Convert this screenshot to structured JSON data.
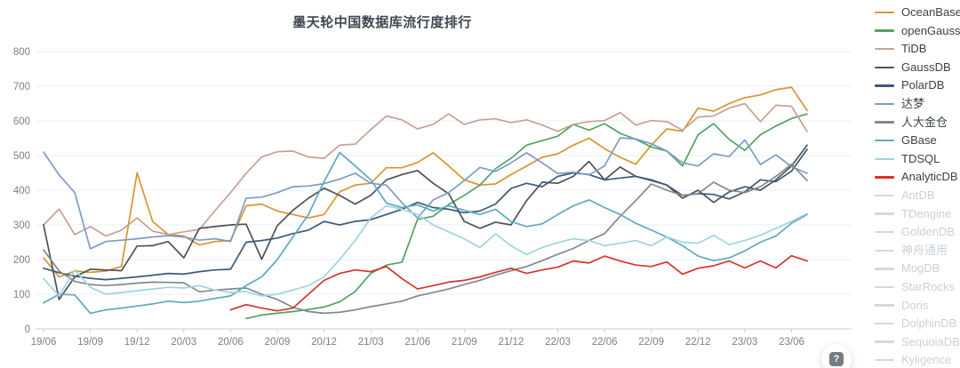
{
  "title": "墨天轮中国数据库流行度排行",
  "help_button": {
    "icon": "question-mark-icon",
    "label": "?"
  },
  "colors": {
    "background": "#ffffff",
    "grid": "#E9EFF6",
    "axis": "#C8CDD2",
    "tick_text": "#7A8186",
    "title_text": "#40474E",
    "legend_text": "#3A4145",
    "legend_inactive": "#CBD1D6",
    "legend_inactive_swatch": "#D4D9DD"
  },
  "chart_data": {
    "type": "line",
    "title": "墨天轮中国数据库流行度排行",
    "xlabel": "",
    "ylabel": "",
    "ylim": [
      0,
      800
    ],
    "y_ticks": [
      0,
      100,
      200,
      300,
      400,
      500,
      600,
      700,
      800
    ],
    "grid": "horizontal",
    "legend_position": "right",
    "x": [
      "19/06",
      "19/07",
      "19/08",
      "19/09",
      "19/10",
      "19/11",
      "19/12",
      "20/01",
      "20/02",
      "20/03",
      "20/04",
      "20/05",
      "20/06",
      "20/07",
      "20/08",
      "20/09",
      "20/10",
      "20/11",
      "20/12",
      "21/01",
      "21/02",
      "21/03",
      "21/04",
      "21/05",
      "21/06",
      "21/07",
      "21/08",
      "21/09",
      "21/10",
      "21/11",
      "21/12",
      "22/01",
      "22/02",
      "22/03",
      "22/04",
      "22/05",
      "22/06",
      "22/07",
      "22/08",
      "22/09",
      "22/10",
      "22/11",
      "22/12",
      "23/01",
      "23/02",
      "23/03",
      "23/04",
      "23/05",
      "23/06",
      "23/07"
    ],
    "x_tick_labels": [
      "19/06",
      "19/09",
      "19/12",
      "20/03",
      "20/06",
      "20/09",
      "20/12",
      "21/03",
      "21/06",
      "21/09",
      "21/12",
      "22/03",
      "22/06",
      "22/09",
      "22/12",
      "23/03",
      "23/06"
    ],
    "series": [
      {
        "name": "OceanBase",
        "color": "#D9952E",
        "values": [
          205,
          150,
          167,
          163,
          167,
          180,
          450,
          310,
          272,
          268,
          242,
          252,
          255,
          355,
          360,
          340,
          330,
          320,
          330,
          395,
          415,
          420,
          465,
          465,
          480,
          508,
          470,
          430,
          415,
          418,
          445,
          470,
          495,
          505,
          530,
          550,
          520,
          495,
          475,
          530,
          577,
          570,
          637,
          628,
          650,
          667,
          675,
          690,
          697,
          630
        ]
      },
      {
        "name": "openGauss",
        "color": "#55A164",
        "values": [
          null,
          null,
          null,
          null,
          null,
          null,
          null,
          null,
          null,
          null,
          null,
          null,
          null,
          30,
          40,
          45,
          50,
          56,
          63,
          78,
          108,
          160,
          184,
          192,
          316,
          325,
          359,
          385,
          415,
          462,
          492,
          530,
          543,
          556,
          590,
          573,
          592,
          564,
          547,
          525,
          513,
          470,
          560,
          592,
          547,
          515,
          560,
          585,
          607,
          620
        ]
      },
      {
        "name": "TiDB",
        "color": "#C9A094",
        "values": [
          300,
          346,
          272,
          295,
          268,
          285,
          320,
          282,
          272,
          280,
          287,
          341,
          393,
          449,
          496,
          511,
          513,
          496,
          492,
          530,
          533,
          575,
          614,
          603,
          577,
          590,
          620,
          590,
          603,
          606,
          595,
          603,
          588,
          570,
          590,
          598,
          601,
          624,
          588,
          601,
          598,
          573,
          611,
          614,
          637,
          650,
          598,
          645,
          642,
          569
        ]
      },
      {
        "name": "GaussDB",
        "color": "#4E5357",
        "values": [
          300,
          85,
          150,
          172,
          170,
          168,
          239,
          240,
          252,
          205,
          290,
          295,
          300,
          302,
          201,
          298,
          342,
          377,
          406,
          385,
          360,
          385,
          430,
          445,
          457,
          420,
          390,
          310,
          290,
          308,
          300,
          370,
          423,
          420,
          440,
          483,
          430,
          467,
          440,
          430,
          415,
          377,
          400,
          365,
          395,
          410,
          400,
          430,
          470,
          530
        ]
      },
      {
        "name": "PolarDB",
        "color": "#3D5977",
        "values": [
          175,
          162,
          152,
          146,
          142,
          146,
          150,
          155,
          160,
          158,
          165,
          170,
          172,
          250,
          255,
          262,
          275,
          285,
          310,
          300,
          310,
          315,
          330,
          345,
          365,
          350,
          345,
          335,
          340,
          360,
          405,
          420,
          410,
          440,
          450,
          445,
          430,
          435,
          440,
          428,
          415,
          385,
          390,
          388,
          375,
          395,
          430,
          425,
          455,
          518
        ]
      },
      {
        "name": "达梦",
        "color": "#7D9BC8",
        "values": [
          510,
          444,
          393,
          231,
          252,
          256,
          260,
          265,
          269,
          265,
          256,
          260,
          252,
          377,
          380,
          393,
          410,
          412,
          419,
          432,
          449,
          420,
          415,
          364,
          320,
          372,
          393,
          428,
          466,
          454,
          479,
          508,
          479,
          448,
          452,
          444,
          470,
          551,
          548,
          534,
          513,
          479,
          470,
          505,
          497,
          545,
          474,
          502,
          468,
          449
        ]
      },
      {
        "name": "人大金仓",
        "color": "#82888D",
        "values": [
          228,
          167,
          137,
          128,
          125,
          128,
          132,
          135,
          134,
          133,
          107,
          112,
          115,
          118,
          100,
          85,
          62,
          50,
          45,
          48,
          55,
          64,
          72,
          80,
          95,
          105,
          115,
          128,
          140,
          155,
          168,
          180,
          197,
          215,
          232,
          255,
          275,
          325,
          370,
          418,
          400,
          385,
          390,
          423,
          400,
          393,
          410,
          440,
          475,
          428
        ]
      },
      {
        "name": "GBase",
        "color": "#5FA9C0",
        "values": [
          75,
          100,
          98,
          45,
          55,
          60,
          66,
          72,
          80,
          76,
          80,
          88,
          95,
          125,
          150,
          200,
          265,
          330,
          425,
          509,
          470,
          430,
          363,
          350,
          358,
          340,
          355,
          342,
          330,
          345,
          310,
          295,
          303,
          330,
          355,
          372,
          350,
          330,
          305,
          285,
          265,
          240,
          210,
          197,
          205,
          225,
          250,
          268,
          305,
          330
        ]
      },
      {
        "name": "TDSQL",
        "color": "#9FD4DE",
        "values": [
          145,
          95,
          170,
          120,
          100,
          105,
          110,
          115,
          120,
          118,
          125,
          112,
          105,
          108,
          95,
          100,
          112,
          125,
          150,
          200,
          255,
          320,
          355,
          345,
          330,
          300,
          280,
          260,
          235,
          274,
          240,
          214,
          235,
          249,
          260,
          255,
          240,
          247,
          255,
          240,
          265,
          250,
          247,
          270,
          243,
          255,
          270,
          290,
          310,
          333
        ]
      },
      {
        "name": "AnalyticDB",
        "color": "#D6332C",
        "values": [
          null,
          null,
          null,
          null,
          null,
          null,
          null,
          null,
          null,
          null,
          null,
          null,
          55,
          70,
          60,
          52,
          60,
          100,
          140,
          160,
          170,
          165,
          180,
          145,
          115,
          125,
          135,
          140,
          150,
          163,
          175,
          160,
          170,
          178,
          196,
          190,
          210,
          196,
          184,
          180,
          193,
          158,
          175,
          182,
          196,
          176,
          196,
          176,
          211,
          196
        ]
      }
    ],
    "inactive_series": [
      "AntDB",
      "TDengine",
      "GoldenDB",
      "神舟通用",
      "MogDB",
      "StarRocks",
      "Doris",
      "DolphinDB",
      "SequoiaDB",
      "Kyligence"
    ]
  }
}
